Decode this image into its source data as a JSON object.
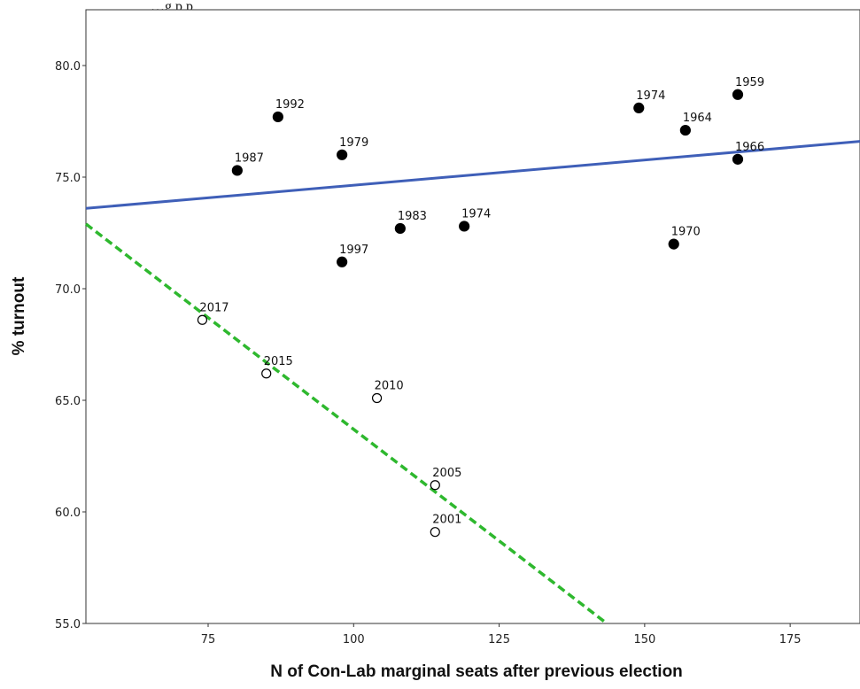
{
  "header": {
    "partial_text": "…g         p       p"
  },
  "chart_data": {
    "type": "scatter",
    "title": "",
    "xlabel": "N of Con-Lab marginal seats after previous election",
    "ylabel": "% turnout",
    "xlim": [
      54,
      187
    ],
    "ylim": [
      55.0,
      82.5
    ],
    "xticks": [
      75,
      100,
      125,
      150,
      175
    ],
    "xtick_labels": [
      "75",
      "100",
      "125",
      "150",
      "175"
    ],
    "yticks": [
      55,
      60,
      65,
      70,
      75,
      80
    ],
    "ytick_labels": [
      "55.0",
      "60.0",
      "65.0",
      "70.0",
      "75.0",
      "80.0"
    ],
    "grid": false,
    "legend": "none",
    "series": [
      {
        "style": "filled",
        "color": "#000000",
        "points": [
          {
            "label": "1959",
            "x": 166,
            "y": 78.7
          },
          {
            "label": "1964",
            "x": 157,
            "y": 77.1
          },
          {
            "label": "1966",
            "x": 166,
            "y": 75.8
          },
          {
            "label": "1970",
            "x": 155,
            "y": 72.0
          },
          {
            "label": "1974",
            "x": 149,
            "y": 78.1
          },
          {
            "label": "1974",
            "x": 119,
            "y": 72.8
          },
          {
            "label": "1979",
            "x": 98,
            "y": 76.0
          },
          {
            "label": "1983",
            "x": 108,
            "y": 72.7
          },
          {
            "label": "1987",
            "x": 80,
            "y": 75.3
          },
          {
            "label": "1992",
            "x": 87,
            "y": 77.7
          },
          {
            "label": "1997",
            "x": 98,
            "y": 71.2
          }
        ]
      },
      {
        "style": "hollow",
        "color": "#000000",
        "points": [
          {
            "label": "2001",
            "x": 114,
            "y": 59.1
          },
          {
            "label": "2005",
            "x": 114,
            "y": 61.2
          },
          {
            "label": "2010",
            "x": 104,
            "y": 65.1
          },
          {
            "label": "2015",
            "x": 85,
            "y": 66.2
          },
          {
            "label": "2017",
            "x": 74,
            "y": 68.6
          }
        ]
      }
    ],
    "fit_lines": [
      {
        "style": "solid",
        "color": "#3f5fb8",
        "x": [
          54,
          187
        ],
        "y": [
          73.6,
          76.6
        ]
      },
      {
        "style": "dashed",
        "color": "#2eb82e",
        "x": [
          54,
          143.5
        ],
        "y": [
          72.9,
          55.0
        ]
      }
    ]
  }
}
